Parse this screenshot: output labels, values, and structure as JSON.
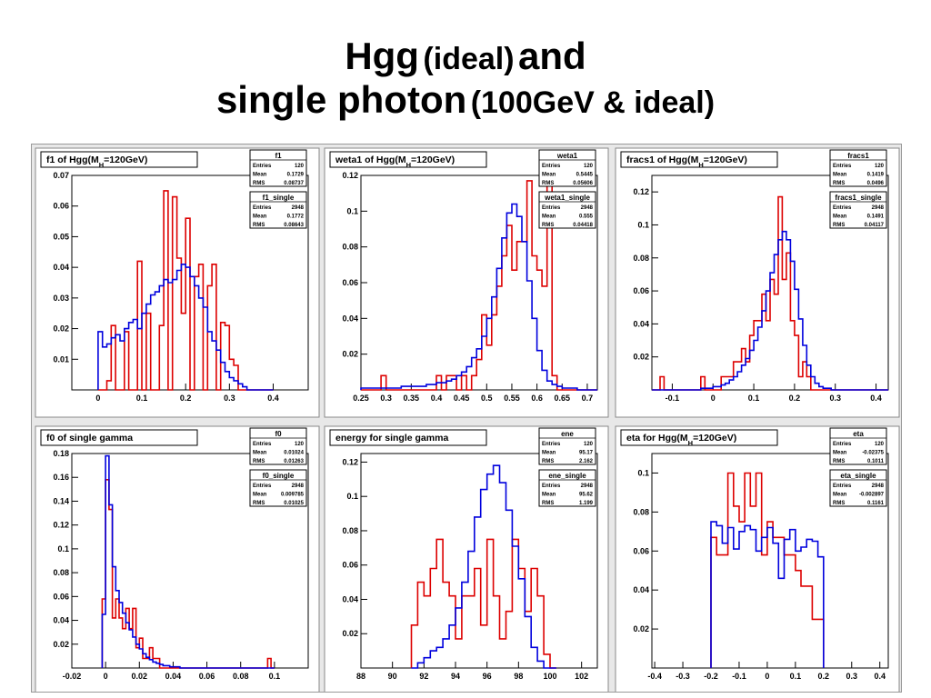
{
  "slide": {
    "title_line1_part1": "Hgg",
    "title_line1_part2": "(ideal)",
    "title_line1_part3": "and",
    "title_line2_part1": "single photon",
    "title_line2_part2": "(100GeV & ideal)"
  },
  "colors": {
    "hgg": "#dd0000",
    "single": "#0000dd",
    "frame": "#000000",
    "panel_bg": "#ffffff",
    "canvas_bg": "#e8e8e8"
  },
  "chart_data": [
    {
      "type": "histogram",
      "title": "f1 of Hgg(M_H=120GeV)",
      "xlim": [
        -0.06,
        0.48
      ],
      "ylim": [
        0,
        0.07
      ],
      "xticks": [
        "0",
        "0.1",
        "0.2",
        "0.3",
        "0.4"
      ],
      "xtick_values": [
        0,
        0.1,
        0.2,
        0.3,
        0.4
      ],
      "yticks": [
        "0.01",
        "0.02",
        "0.03",
        "0.04",
        "0.05",
        "0.06",
        "0.07"
      ],
      "ytick_values": [
        0.01,
        0.02,
        0.03,
        0.04,
        0.05,
        0.06,
        0.07
      ],
      "stats": [
        {
          "name": "f1",
          "rows": [
            [
              "Entries",
              "120"
            ],
            [
              "Mean",
              "0.1729"
            ],
            [
              "RMS",
              "0.08737"
            ]
          ]
        },
        {
          "name": "f1_single",
          "rows": [
            [
              "Entries",
              "2948"
            ],
            [
              "Mean",
              "0.1772"
            ],
            [
              "RMS",
              "0.08643"
            ]
          ]
        }
      ],
      "series": [
        {
          "color": "hgg",
          "bin_start": 0.0,
          "bin_width": 0.01,
          "values": [
            0,
            0,
            0.003,
            0.021,
            0.0,
            0.0,
            0.019,
            0.0,
            0,
            0.042,
            0.0,
            0.025,
            0.0,
            0.0,
            0.021,
            0.065,
            0.0,
            0.063,
            0.043,
            0.025,
            0.056,
            0.0,
            0.037,
            0.041,
            0.0,
            0.034,
            0.041,
            0.0,
            0.022,
            0.021,
            0.01,
            0.008,
            0.0,
            0.0,
            0,
            0,
            0,
            0,
            0,
            0
          ]
        },
        {
          "color": "single",
          "bin_start": 0.0,
          "bin_width": 0.01,
          "values": [
            0.019,
            0.014,
            0.015,
            0.017,
            0.018,
            0.016,
            0.02,
            0.022,
            0.023,
            0.02,
            0.025,
            0.028,
            0.031,
            0.032,
            0.034,
            0.036,
            0.035,
            0.036,
            0.039,
            0.041,
            0.04,
            0.037,
            0.034,
            0.03,
            0.027,
            0.019,
            0.016,
            0.013,
            0.009,
            0.006,
            0.004,
            0.003,
            0.002,
            0.001,
            0.0,
            0.0,
            0,
            0,
            0,
            0
          ]
        }
      ]
    },
    {
      "type": "histogram",
      "title": "weta1 of Hgg(M_H=120GeV)",
      "xlim": [
        0.25,
        0.72
      ],
      "ylim": [
        0,
        0.12
      ],
      "xticks": [
        "0.25",
        "0.3",
        "0.35",
        "0.4",
        "0.45",
        "0.5",
        "0.55",
        "0.6",
        "0.65",
        "0.7"
      ],
      "xtick_values": [
        0.25,
        0.3,
        0.35,
        0.4,
        0.45,
        0.5,
        0.55,
        0.6,
        0.65,
        0.7
      ],
      "yticks": [
        "0.02",
        "0.04",
        "0.06",
        "0.08",
        "0.1",
        "0.12"
      ],
      "ytick_values": [
        0.02,
        0.04,
        0.06,
        0.08,
        0.1,
        0.12
      ],
      "stats": [
        {
          "name": "weta1",
          "rows": [
            [
              "Entries",
              "120"
            ],
            [
              "Mean",
              "0.5445"
            ],
            [
              "RMS",
              "0.05606"
            ]
          ]
        },
        {
          "name": "weta1_single",
          "rows": [
            [
              "Entries",
              "2948"
            ],
            [
              "Mean",
              "0.555"
            ],
            [
              "RMS",
              "0.04418"
            ]
          ]
        }
      ],
      "series": [
        {
          "color": "hgg",
          "bin_start": 0.25,
          "bin_width": 0.01,
          "values": [
            0,
            0,
            0,
            0,
            0.008,
            0,
            0,
            0,
            0,
            0,
            0,
            0,
            0,
            0,
            0,
            0.008,
            0,
            0.008,
            0.008,
            0,
            0.008,
            0,
            0.008,
            0.017,
            0.042,
            0.025,
            0.042,
            0.058,
            0.075,
            0.092,
            0.067,
            0.083,
            0.083,
            0.117,
            0.075,
            0.067,
            0.058,
            0.117,
            0.008,
            0,
            0,
            0,
            0,
            0,
            0,
            0,
            0
          ]
        },
        {
          "color": "single",
          "bin_start": 0.25,
          "bin_width": 0.01,
          "values": [
            0.001,
            0.001,
            0.001,
            0.001,
            0.001,
            0.001,
            0.001,
            0.001,
            0.002,
            0.002,
            0.002,
            0.002,
            0.002,
            0.003,
            0.003,
            0.004,
            0.004,
            0.005,
            0.006,
            0.008,
            0.01,
            0.013,
            0.018,
            0.023,
            0.03,
            0.04,
            0.052,
            0.068,
            0.085,
            0.099,
            0.104,
            0.097,
            0.083,
            0.061,
            0.04,
            0.022,
            0.011,
            0.005,
            0.003,
            0.002,
            0.001,
            0.001,
            0.001,
            0,
            0,
            0,
            0
          ]
        }
      ]
    },
    {
      "type": "histogram",
      "title": "fracs1 of Hgg(M_H=120GeV)",
      "xlim": [
        -0.15,
        0.43
      ],
      "ylim": [
        0,
        0.13
      ],
      "xticks": [
        "-0.1",
        "0",
        "0.1",
        "0.2",
        "0.3",
        "0.4"
      ],
      "xtick_values": [
        -0.1,
        0,
        0.1,
        0.2,
        0.3,
        0.4
      ],
      "yticks": [
        "0.02",
        "0.04",
        "0.06",
        "0.08",
        "0.1",
        "0.12"
      ],
      "ytick_values": [
        0.02,
        0.04,
        0.06,
        0.08,
        0.1,
        0.12
      ],
      "stats": [
        {
          "name": "fracs1",
          "rows": [
            [
              "Entries",
              "120"
            ],
            [
              "Mean",
              "0.1419"
            ],
            [
              "RMS",
              "0.0496"
            ]
          ]
        },
        {
          "name": "fracs1_single",
          "rows": [
            [
              "Entries",
              "2948"
            ],
            [
              "Mean",
              "0.1491"
            ],
            [
              "RMS",
              "0.04117"
            ]
          ]
        }
      ],
      "series": [
        {
          "color": "hgg",
          "bin_start": -0.15,
          "bin_width": 0.01,
          "values": [
            0,
            0,
            0.008,
            0,
            0,
            0,
            0,
            0,
            0,
            0,
            0,
            0,
            0.008,
            0,
            0,
            0,
            0,
            0.008,
            0.008,
            0.008,
            0.017,
            0.017,
            0.025,
            0.017,
            0.033,
            0.042,
            0.042,
            0.058,
            0.042,
            0.067,
            0.058,
            0.117,
            0.067,
            0.083,
            0.042,
            0.033,
            0.008,
            0.017,
            0.008,
            0,
            0,
            0,
            0,
            0,
            0,
            0,
            0,
            0,
            0,
            0,
            0,
            0,
            0,
            0,
            0,
            0,
            0,
            0
          ]
        },
        {
          "color": "single",
          "bin_start": -0.15,
          "bin_width": 0.01,
          "values": [
            0,
            0,
            0,
            0,
            0,
            0,
            0,
            0,
            0,
            0,
            0,
            0,
            0.001,
            0.001,
            0.001,
            0.002,
            0.002,
            0.003,
            0.004,
            0.006,
            0.008,
            0.011,
            0.015,
            0.019,
            0.024,
            0.03,
            0.038,
            0.048,
            0.06,
            0.071,
            0.082,
            0.091,
            0.096,
            0.091,
            0.078,
            0.061,
            0.043,
            0.027,
            0.015,
            0.008,
            0.004,
            0.002,
            0.001,
            0.001,
            0,
            0,
            0,
            0,
            0,
            0,
            0,
            0,
            0,
            0,
            0,
            0,
            0,
            0
          ]
        }
      ]
    },
    {
      "type": "histogram",
      "title": "f0 of single gamma",
      "xlim": [
        -0.02,
        0.12
      ],
      "ylim": [
        0,
        0.18
      ],
      "xticks": [
        "-0.02",
        "0",
        "0.02",
        "0.04",
        "0.06",
        "0.08",
        "0.1"
      ],
      "xtick_values": [
        -0.02,
        0,
        0.02,
        0.04,
        0.06,
        0.08,
        0.1
      ],
      "yticks": [
        "0.02",
        "0.04",
        "0.06",
        "0.08",
        "0.1",
        "0.12",
        "0.14",
        "0.16",
        "0.18"
      ],
      "ytick_values": [
        0.02,
        0.04,
        0.06,
        0.08,
        0.1,
        0.12,
        0.14,
        0.16,
        0.18
      ],
      "stats": [
        {
          "name": "f0",
          "rows": [
            [
              "Entries",
              "120"
            ],
            [
              "Mean",
              "0.01024"
            ],
            [
              "RMS",
              "0.01263"
            ]
          ]
        },
        {
          "name": "f0_single",
          "rows": [
            [
              "Entries",
              "2948"
            ],
            [
              "Mean",
              "0.009785"
            ],
            [
              "RMS",
              "0.01025"
            ]
          ]
        }
      ],
      "series": [
        {
          "color": "hgg",
          "bin_start": -0.002,
          "bin_width": 0.002,
          "values": [
            0.058,
            0.158,
            0.133,
            0.042,
            0.058,
            0.042,
            0.033,
            0.05,
            0.033,
            0.05,
            0.017,
            0.025,
            0.008,
            0.008,
            0.017,
            0.008,
            0.008,
            0,
            0,
            0,
            0,
            0,
            0,
            0,
            0,
            0,
            0,
            0,
            0,
            0,
            0,
            0,
            0,
            0,
            0,
            0,
            0,
            0,
            0,
            0,
            0,
            0,
            0,
            0,
            0,
            0,
            0,
            0,
            0,
            0.008,
            0
          ]
        },
        {
          "color": "single",
          "bin_start": -0.002,
          "bin_width": 0.002,
          "values": [
            0.045,
            0.178,
            0.137,
            0.085,
            0.065,
            0.055,
            0.046,
            0.038,
            0.032,
            0.026,
            0.02,
            0.016,
            0.012,
            0.009,
            0.007,
            0.005,
            0.004,
            0.003,
            0.002,
            0.002,
            0.001,
            0.001,
            0.001,
            0,
            0,
            0,
            0,
            0,
            0,
            0,
            0,
            0,
            0,
            0,
            0,
            0,
            0,
            0,
            0,
            0,
            0,
            0,
            0,
            0,
            0,
            0,
            0,
            0,
            0,
            0,
            0
          ]
        }
      ]
    },
    {
      "type": "histogram",
      "title": "energy for single gamma",
      "xlim": [
        88,
        103
      ],
      "ylim": [
        0,
        0.125
      ],
      "xticks": [
        "88",
        "90",
        "92",
        "94",
        "96",
        "98",
        "100",
        "102"
      ],
      "xtick_values": [
        88,
        90,
        92,
        94,
        96,
        98,
        100,
        102
      ],
      "yticks": [
        "0.02",
        "0.04",
        "0.06",
        "0.08",
        "0.1",
        "0.12"
      ],
      "ytick_values": [
        0.02,
        0.04,
        0.06,
        0.08,
        0.1,
        0.12
      ],
      "stats": [
        {
          "name": "ene",
          "rows": [
            [
              "Entries",
              "120"
            ],
            [
              "Mean",
              "95.17"
            ],
            [
              "RMS",
              "2.162"
            ]
          ]
        },
        {
          "name": "ene_single",
          "rows": [
            [
              "Entries",
              "2948"
            ],
            [
              "Mean",
              "95.62"
            ],
            [
              "RMS",
              "1.199"
            ]
          ]
        }
      ],
      "series": [
        {
          "color": "hgg",
          "bin_start": 91.2,
          "bin_width": 0.4,
          "values": [
            0.025,
            0.05,
            0.042,
            0.058,
            0.075,
            0.05,
            0.042,
            0.017,
            0.042,
            0.042,
            0.058,
            0.025,
            0.075,
            0.042,
            0.017,
            0.033,
            0.075,
            0.058,
            0.033,
            0.058,
            0.042,
            0.008,
            0
          ]
        },
        {
          "color": "single",
          "bin_start": 91.2,
          "bin_width": 0.4,
          "values": [
            0,
            0.003,
            0.006,
            0.01,
            0.012,
            0.017,
            0.025,
            0.035,
            0.05,
            0.068,
            0.088,
            0.104,
            0.113,
            0.118,
            0.108,
            0.092,
            0.071,
            0.052,
            0.03,
            0.012,
            0.004,
            0,
            0
          ]
        }
      ]
    },
    {
      "type": "histogram",
      "title": "eta for Hgg(M_H=120GeV)",
      "xlim": [
        -0.41,
        0.43
      ],
      "ylim": [
        0,
        0.11
      ],
      "xticks": [
        "-0.4",
        "-0.3",
        "-0.2",
        "-0.1",
        "0",
        "0.1",
        "0.2",
        "0.3",
        "0.4"
      ],
      "xtick_values": [
        -0.4,
        -0.3,
        -0.2,
        -0.1,
        0,
        0.1,
        0.2,
        0.3,
        0.4
      ],
      "yticks": [
        "0.02",
        "0.04",
        "0.06",
        "0.08",
        "0.1"
      ],
      "ytick_values": [
        0.02,
        0.04,
        0.06,
        0.08,
        0.1
      ],
      "stats": [
        {
          "name": "eta",
          "rows": [
            [
              "Entries",
              "120"
            ],
            [
              "Mean",
              "-0.02375"
            ],
            [
              "RMS",
              "0.1011"
            ]
          ]
        },
        {
          "name": "eta_single",
          "rows": [
            [
              "Entries",
              "2948"
            ],
            [
              "Mean",
              "-0.002897"
            ],
            [
              "RMS",
              "0.1161"
            ]
          ]
        }
      ],
      "series": [
        {
          "color": "hgg",
          "bin_start": -0.2,
          "bin_width": 0.02,
          "values": [
            0.067,
            0.058,
            0.058,
            0.1,
            0.083,
            0.075,
            0.1,
            0.083,
            0.1,
            0.058,
            0.075,
            0.067,
            0.067,
            0.058,
            0.058,
            0.05,
            0.042,
            0.042,
            0.025,
            0.025
          ]
        },
        {
          "color": "single",
          "bin_start": -0.2,
          "bin_width": 0.02,
          "values": [
            0.075,
            0.073,
            0.064,
            0.072,
            0.061,
            0.07,
            0.073,
            0.071,
            0.06,
            0.067,
            0.072,
            0.064,
            0.046,
            0.066,
            0.071,
            0.06,
            0.062,
            0.066,
            0.065,
            0.057
          ]
        }
      ]
    }
  ]
}
